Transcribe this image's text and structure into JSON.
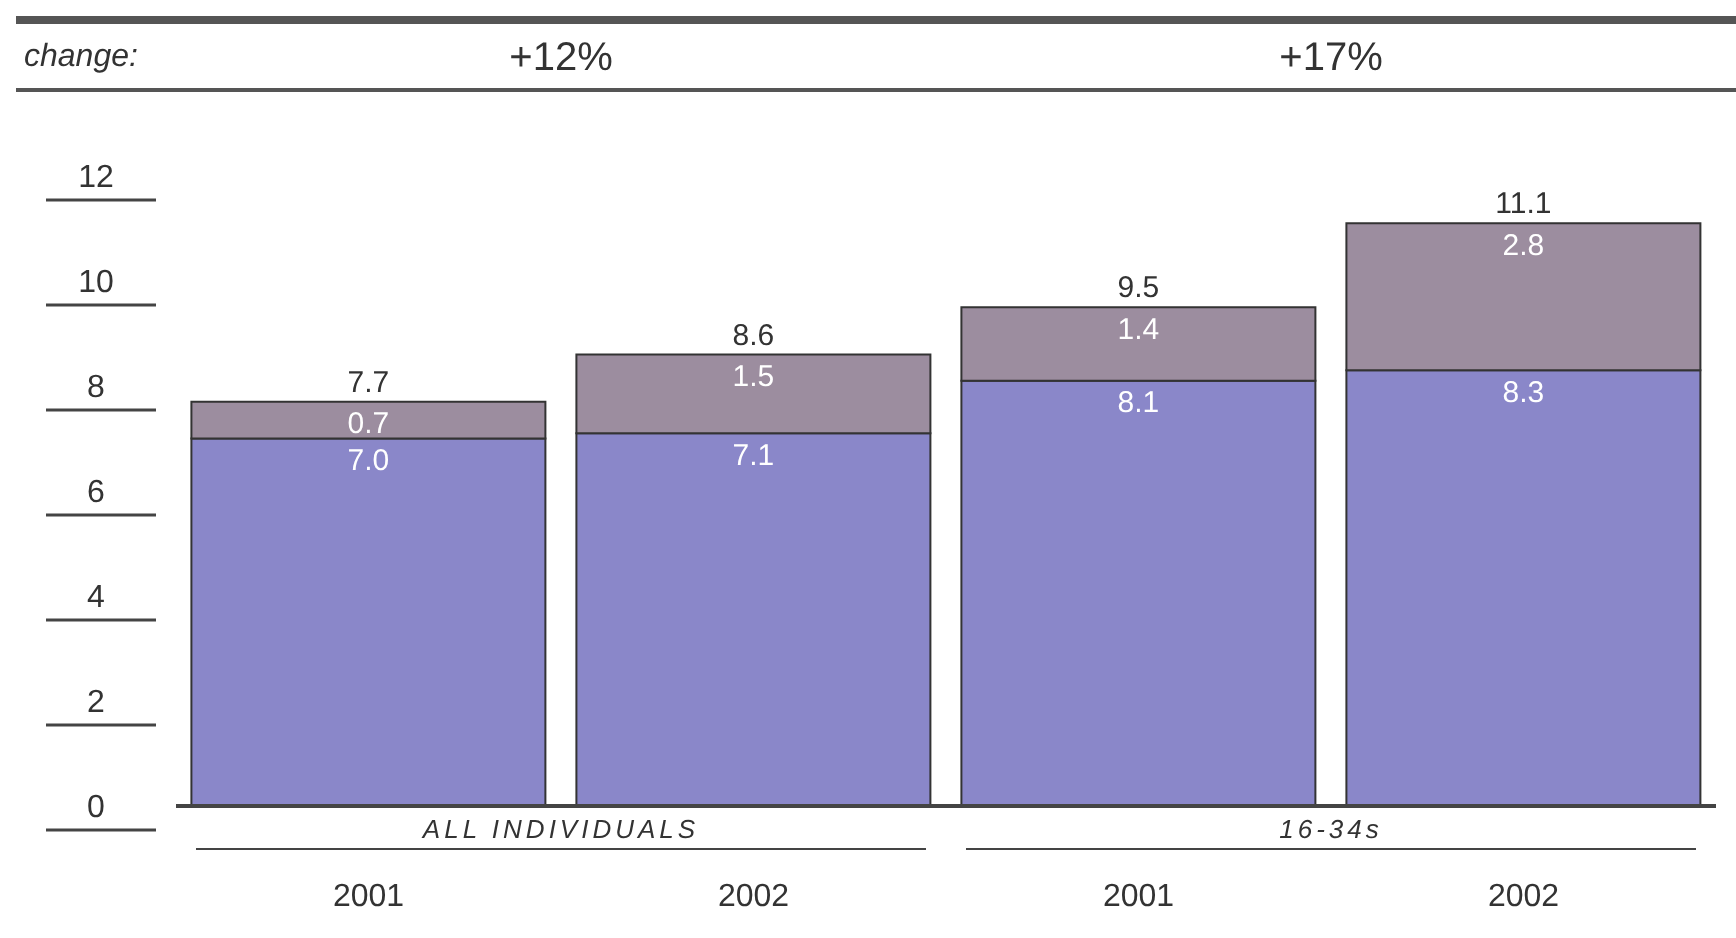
{
  "chart_data": {
    "type": "bar",
    "stacked": true,
    "categories": [
      "2001",
      "2002",
      "2001",
      "2002"
    ],
    "series": [
      {
        "color": "#8a87c9",
        "values": [
          7.0,
          7.1,
          8.1,
          8.3
        ],
        "value_labels": [
          "7.0",
          "7.1",
          "8.1",
          "8.3"
        ]
      },
      {
        "color": "#9c8d9f",
        "values": [
          0.7,
          1.5,
          1.4,
          2.8
        ],
        "value_labels": [
          "0.7",
          "1.5",
          "1.4",
          "2.8"
        ]
      }
    ],
    "totals": [
      "7.7",
      "8.6",
      "9.5",
      "11.1"
    ],
    "ylim": [
      0,
      12
    ],
    "yticks": [
      0,
      2,
      4,
      6,
      8,
      10,
      12
    ],
    "grid": false,
    "legend": false,
    "annotations": [
      "change:",
      "+12%",
      "+17%",
      "ALL INDIVIDUALS",
      "16-34s"
    ]
  }
}
